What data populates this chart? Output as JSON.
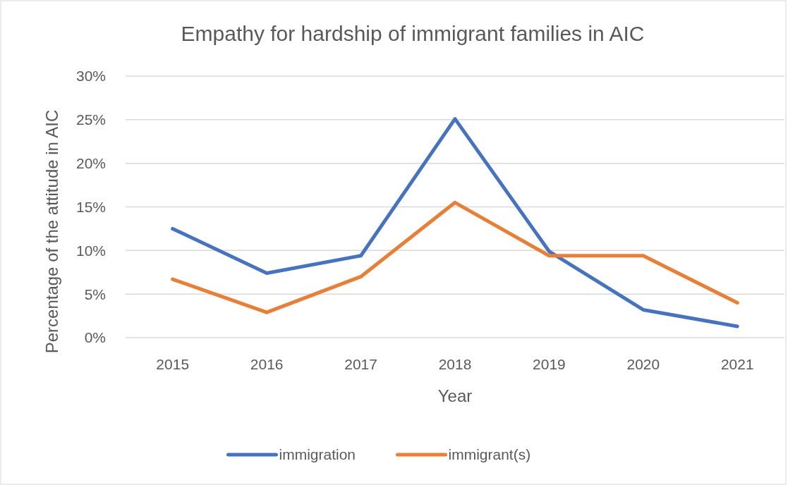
{
  "chart_data": {
    "type": "line",
    "title": "Empathy for hardship of immigrant families in AIC",
    "xlabel": "Year",
    "ylabel": "Percentage of the attitude  in AIC",
    "categories": [
      "2015",
      "2016",
      "2017",
      "2018",
      "2019",
      "2020",
      "2021"
    ],
    "series": [
      {
        "name": "immigration",
        "color": "#4472c4",
        "values": [
          12.5,
          7.4,
          9.4,
          25.1,
          9.9,
          3.2,
          1.3
        ]
      },
      {
        "name": "immigrant(s)",
        "color": "#ed7d31",
        "values": [
          6.7,
          2.9,
          7.0,
          15.5,
          9.4,
          9.4,
          4.0
        ]
      }
    ],
    "ylim": [
      0,
      30
    ],
    "yticks": [
      {
        "value": 0,
        "label": "0%"
      },
      {
        "value": 5,
        "label": "5%"
      },
      {
        "value": 10,
        "label": "10%"
      },
      {
        "value": 15,
        "label": "15%"
      },
      {
        "value": 20,
        "label": "20%"
      },
      {
        "value": 25,
        "label": "25%"
      },
      {
        "value": 30,
        "label": "30%"
      }
    ],
    "grid": "y",
    "legend": "bottom",
    "marker": "none",
    "line_style": "solid"
  }
}
